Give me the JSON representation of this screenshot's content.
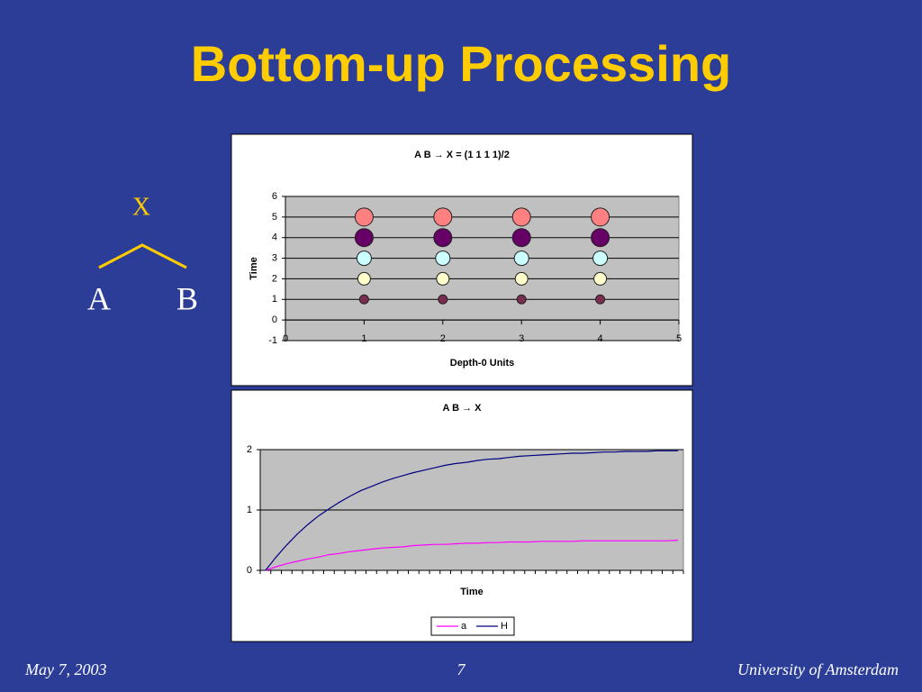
{
  "header": {
    "title": "Bottom-up Processing"
  },
  "tree": {
    "root": "X",
    "children": [
      "A",
      "B"
    ]
  },
  "footer": {
    "date": "May 7, 2003",
    "page": "7",
    "institution": "University of Amsterdam"
  },
  "chart_data": [
    {
      "type": "scatter",
      "title": "A B → X = (1 1 1 1)/2",
      "x_label": "Depth-0 Units",
      "y_label": "Time",
      "xlim": [
        0,
        5
      ],
      "xticks": [
        0,
        1,
        2,
        3,
        4,
        5
      ],
      "ylim": [
        -1,
        6
      ],
      "yticks": [
        -1,
        0,
        1,
        2,
        3,
        4,
        5,
        6
      ],
      "grid": true,
      "series": [
        {
          "color": "#7b2d4f",
          "x": [
            1,
            2,
            3,
            4
          ],
          "values": [
            1,
            1,
            1,
            1
          ]
        },
        {
          "color": "#ffffcc",
          "x": [
            1,
            2,
            3,
            4
          ],
          "values": [
            2,
            2,
            2,
            2
          ]
        },
        {
          "color": "#ccffff",
          "x": [
            1,
            2,
            3,
            4
          ],
          "values": [
            3,
            3,
            3,
            3
          ]
        },
        {
          "color": "#660066",
          "x": [
            1,
            2,
            3,
            4
          ],
          "values": [
            4,
            4,
            4,
            4
          ]
        },
        {
          "color": "#ff8080",
          "x": [
            1,
            2,
            3,
            4
          ],
          "values": [
            5,
            5,
            5,
            5
          ]
        }
      ]
    },
    {
      "type": "line",
      "title": "A B → X",
      "x_label": "Time",
      "ylim": [
        0,
        2
      ],
      "yticks": [
        0,
        1,
        2
      ],
      "grid": true,
      "legend": "bottom",
      "categories": [
        null,
        null,
        null,
        null,
        null,
        null,
        null,
        null,
        null,
        null,
        null,
        null,
        null,
        null,
        null,
        null,
        null,
        null,
        null,
        null,
        null,
        null,
        null,
        null,
        null,
        null,
        null,
        null,
        null,
        null,
        null,
        null,
        null,
        null,
        null,
        null,
        null,
        null,
        null,
        null
      ],
      "series": [
        {
          "name": "a",
          "color": "#ff00ff",
          "values": [
            0,
            0.06,
            0.11,
            0.15,
            0.19,
            0.22,
            0.26,
            0.28,
            0.31,
            0.33,
            0.35,
            0.37,
            0.38,
            0.39,
            0.41,
            0.42,
            0.43,
            0.43,
            0.44,
            0.45,
            0.45,
            0.46,
            0.46,
            0.47,
            0.47,
            0.47,
            0.48,
            0.48,
            0.48,
            0.48,
            0.49,
            0.49,
            0.49,
            0.49,
            0.49,
            0.49,
            0.49,
            0.49,
            0.49,
            0.5
          ]
        },
        {
          "name": "H",
          "color": "#000080",
          "values": [
            0,
            0.22,
            0.42,
            0.6,
            0.76,
            0.9,
            1.02,
            1.13,
            1.23,
            1.32,
            1.39,
            1.46,
            1.52,
            1.57,
            1.62,
            1.66,
            1.7,
            1.74,
            1.77,
            1.79,
            1.82,
            1.84,
            1.85,
            1.87,
            1.89,
            1.9,
            1.91,
            1.92,
            1.93,
            1.94,
            1.94,
            1.95,
            1.96,
            1.96,
            1.97,
            1.97,
            1.97,
            1.98,
            1.98,
            1.98
          ]
        }
      ]
    }
  ]
}
